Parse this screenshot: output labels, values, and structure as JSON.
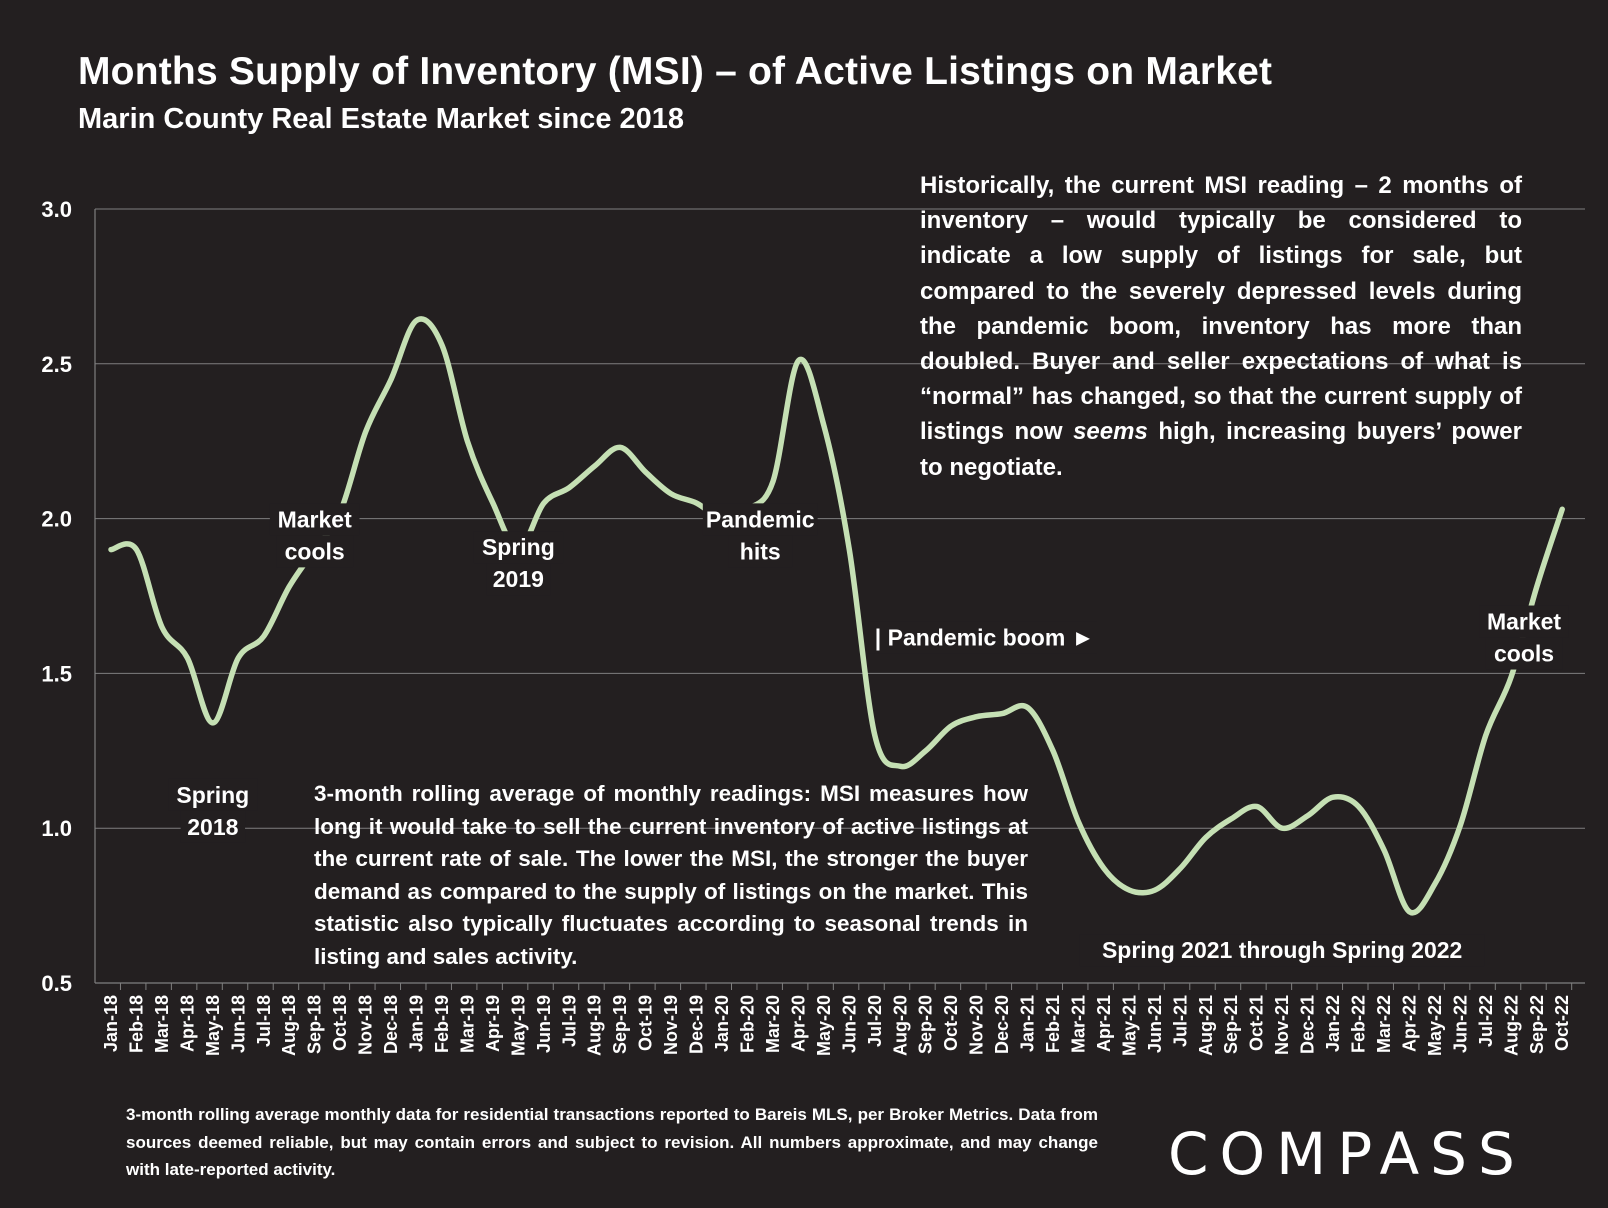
{
  "header": {
    "title": "Months Supply of Inventory (MSI) – of Active Listings on Market",
    "subtitle": "Marin County Real Estate Market since 2018"
  },
  "notes": {
    "right_a": "Historically, the current MSI reading – 2 months of inventory – would typically be considered to indicate a low supply of listings for sale, but compared to the severely depressed levels during the pandemic boom, inventory has more than doubled. Buyer and seller expectations of what is “normal” has changed, so that the current supply of listings now ",
    "right_em": "seems",
    "right_b": " high, increasing buyers’ power to negotiate.",
    "middle": "3-month rolling average of monthly readings: MSI measures how long it would take to sell the current inventory of active listings at the current rate of sale. The lower the MSI, the stronger the buyer demand as compared to the supply of listings on the market. This statistic also typically fluctuates according to seasonal trends in listing and sales activity."
  },
  "footnote": "3-month rolling average monthly data for residential transactions reported to Bareis MLS, per Broker Metrics. Data from sources deemed reliable, but may contain errors and subject to revision. All numbers approximate, and may change with late-reported activity.",
  "logo": "COMPASS",
  "colors": {
    "background": "#231f20",
    "line": "#c5e0b4",
    "grid": "#7f7f7f",
    "text": "#ffffff"
  },
  "chart_data": {
    "type": "line",
    "categories": [
      "Jan-18",
      "Feb-18",
      "Mar-18",
      "Apr-18",
      "May-18",
      "Jun-18",
      "Jul-18",
      "Aug-18",
      "Sep-18",
      "Oct-18",
      "Nov-18",
      "Dec-18",
      "Jan-19",
      "Feb-19",
      "Mar-19",
      "Apr-19",
      "May-19",
      "Jun-19",
      "Jul-19",
      "Aug-19",
      "Sep-19",
      "Oct-19",
      "Nov-19",
      "Dec-19",
      "Jan-20",
      "Feb-20",
      "Mar-20",
      "Apr-20",
      "May-20",
      "Jun-20",
      "Jul-20",
      "Aug-20",
      "Sep-20",
      "Oct-20",
      "Nov-20",
      "Dec-20",
      "Jan-21",
      "Feb-21",
      "Mar-21",
      "Apr-21",
      "May-21",
      "Jun-21",
      "Jul-21",
      "Aug-21",
      "Sep-21",
      "Oct-21",
      "Nov-21",
      "Dec-21",
      "Jan-22",
      "Feb-22",
      "Mar-22",
      "Apr-22",
      "May-22",
      "Jun-22",
      "Jul-22",
      "Aug-22",
      "Sep-22",
      "Oct-22"
    ],
    "values": [
      1.9,
      1.9,
      1.65,
      1.55,
      1.34,
      1.55,
      1.62,
      1.78,
      1.9,
      2.02,
      2.28,
      2.45,
      2.64,
      2.56,
      2.25,
      2.05,
      1.9,
      2.05,
      2.1,
      2.17,
      2.23,
      2.15,
      2.08,
      2.05,
      2.0,
      2.03,
      2.12,
      2.51,
      2.3,
      1.9,
      1.3,
      1.2,
      1.25,
      1.33,
      1.36,
      1.37,
      1.39,
      1.25,
      1.02,
      0.87,
      0.8,
      0.8,
      0.87,
      0.97,
      1.03,
      1.07,
      1.0,
      1.04,
      1.1,
      1.07,
      0.93,
      0.73,
      0.82,
      1.01,
      1.3,
      1.49,
      1.78,
      2.03
    ],
    "ylim": [
      0.5,
      3.0
    ],
    "yticks": [
      "0.5",
      "1.0",
      "1.5",
      "2.0",
      "2.5",
      "3.0"
    ],
    "grid": true,
    "legend": "none",
    "annotations": [
      {
        "lines": [
          "Spring",
          "2018"
        ],
        "index": 4.0,
        "y": 1.03
      },
      {
        "lines": [
          "Market",
          "cools"
        ],
        "index": 8.0,
        "y": 1.92
      },
      {
        "lines": [
          "Spring",
          "2019"
        ],
        "index": 16.0,
        "y": 1.83
      },
      {
        "lines": [
          "Pandemic",
          "hits"
        ],
        "index": 25.5,
        "y": 1.92
      },
      {
        "lines": [
          "| Pandemic boom ►"
        ],
        "index": 30.0,
        "y": 1.59,
        "align": "start"
      },
      {
        "lines": [
          "Spring 2021 through Spring 2022"
        ],
        "index": 46.0,
        "y": 0.58
      },
      {
        "lines": [
          "Market",
          "cools"
        ],
        "index": 55.5,
        "y": 1.59
      }
    ]
  }
}
